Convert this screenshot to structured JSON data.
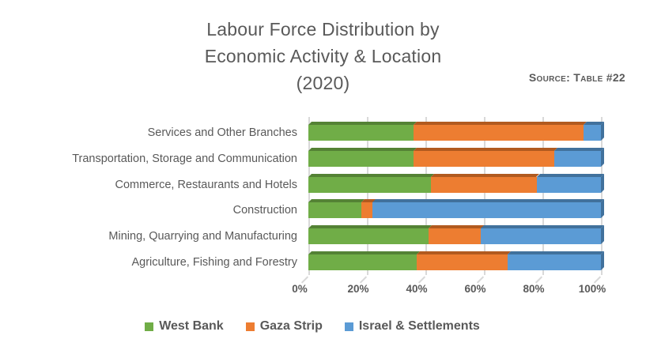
{
  "page": {
    "background": "#ffffff",
    "text_color": "#595959"
  },
  "chart_data": {
    "type": "bar",
    "stacked": true,
    "orientation": "horizontal",
    "style": "3d",
    "title_lines": [
      "Labour Force Distribution by",
      "Economic Activity & Location",
      "(2020)"
    ],
    "title": "Labour Force Distribution by Economic Activity & Location (2020)",
    "source_note": "Source: Table #22",
    "categories": [
      "Services and Other Branches",
      "Transportation, Storage and Communication",
      "Commerce, Restaurants and Hotels",
      "Construction",
      "Mining, Quarrying and Manufacturing",
      "Agriculture, Fishing and Forestry"
    ],
    "series": [
      {
        "name": "West Bank",
        "color": "#70AD47",
        "color_dark": "#548235",
        "values": [
          36,
          36,
          42,
          18,
          41,
          37
        ]
      },
      {
        "name": "Gaza Strip",
        "color": "#ED7D31",
        "color_dark": "#B15A1F",
        "values": [
          58,
          48,
          36,
          4,
          18,
          31
        ]
      },
      {
        "name": "Israel & Settlements",
        "color": "#5B9BD5",
        "color_dark": "#41719C",
        "values": [
          6,
          16,
          22,
          78,
          41,
          32
        ]
      }
    ],
    "x_ticks": [
      "0%",
      "20%",
      "40%",
      "60%",
      "80%",
      "100%"
    ],
    "xlim": [
      0,
      100
    ],
    "unit": "percent",
    "grid": true,
    "gridline_color": "#D9D9D9",
    "legend_position": "bottom"
  }
}
